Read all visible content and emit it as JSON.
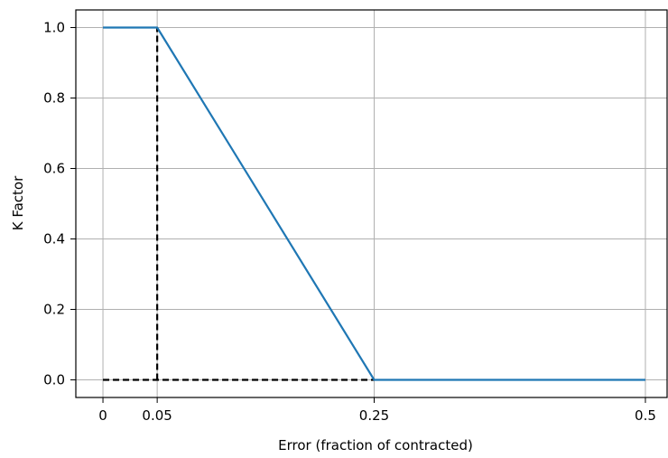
{
  "chart_data": {
    "type": "line",
    "title": "",
    "xlabel": "Error (fraction of contracted)",
    "ylabel": "K Factor",
    "xlim": [
      -0.025,
      0.52
    ],
    "ylim": [
      -0.05,
      1.05
    ],
    "grid": true,
    "xticks": [
      {
        "value": 0,
        "label": "0"
      },
      {
        "value": 0.05,
        "label": "0.05"
      },
      {
        "value": 0.25,
        "label": "0.25"
      },
      {
        "value": 0.5,
        "label": "0.5"
      }
    ],
    "yticks": [
      {
        "value": 0.0,
        "label": "0.0"
      },
      {
        "value": 0.2,
        "label": "0.2"
      },
      {
        "value": 0.4,
        "label": "0.4"
      },
      {
        "value": 0.6,
        "label": "0.6"
      },
      {
        "value": 0.8,
        "label": "0.8"
      },
      {
        "value": 1.0,
        "label": "1.0"
      }
    ],
    "series": [
      {
        "style": "solid",
        "color": "#1f77b4",
        "points": [
          [
            0,
            1.0
          ],
          [
            0.05,
            1.0
          ],
          [
            0.25,
            0.0
          ],
          [
            0.5,
            0.0
          ]
        ]
      }
    ],
    "reference_lines": [
      {
        "style": "dashed",
        "color": "#000000",
        "points": [
          [
            0.05,
            0.0
          ],
          [
            0.05,
            1.0
          ]
        ]
      },
      {
        "style": "dashed",
        "color": "#000000",
        "points": [
          [
            0.0,
            0.0
          ],
          [
            0.25,
            0.0
          ]
        ]
      }
    ]
  }
}
